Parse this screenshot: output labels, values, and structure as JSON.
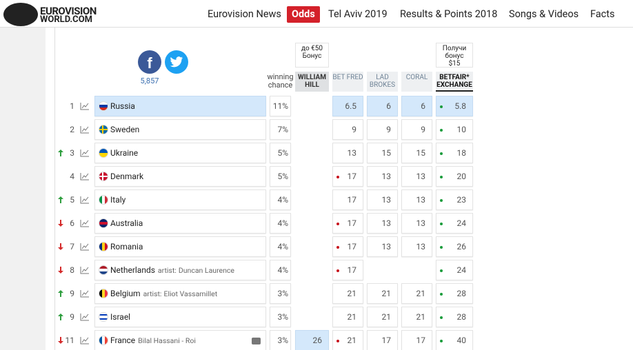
{
  "header": {
    "logo": {
      "line1": "EUROVISION",
      "line2": "WORLD.COM"
    },
    "nav": [
      {
        "label": "Eurovision News"
      },
      {
        "label": "Odds",
        "active": true
      },
      {
        "label": "Tel Aviv 2019"
      },
      {
        "label": "Results & Points 2018"
      },
      {
        "label": "Songs & Videos"
      },
      {
        "label": "Facts"
      }
    ]
  },
  "share": {
    "count": "5,857"
  },
  "table": {
    "columns": [
      {
        "label": "winning chance"
      },
      {
        "label": "WILLIAM HILL",
        "bonus": "до €50 Бонус"
      },
      {
        "label": "BET FRED"
      },
      {
        "label": "LAD BROKES"
      },
      {
        "label": "CORAL"
      },
      {
        "label": "BETFAIR* EXCHANGE",
        "bonus": "Получи бонус $15"
      }
    ],
    "rows": [
      {
        "rank": "1",
        "country": "Russia",
        "flag": {
          "type": "h",
          "colors": [
            "#ffffff",
            "#0039a6",
            "#d52b1e"
          ]
        },
        "chance": "11%",
        "odds": [
          null,
          6.5,
          6,
          6,
          5.8
        ],
        "dots": [
          null,
          null,
          null,
          null,
          "green"
        ],
        "highlight": true,
        "best": [
          1,
          2,
          3,
          4
        ]
      },
      {
        "rank": "2",
        "country": "Sweden",
        "flag": {
          "type": "cross",
          "colors": [
            "#006aa7",
            "#fecc00"
          ]
        },
        "chance": "7%",
        "odds": [
          null,
          9,
          9,
          9,
          10
        ],
        "dots": [
          null,
          null,
          null,
          null,
          "green"
        ]
      },
      {
        "rank": "3",
        "trend": "up",
        "country": "Ukraine",
        "flag": {
          "type": "h",
          "colors": [
            "#0057b7",
            "#ffd700"
          ]
        },
        "chance": "5%",
        "odds": [
          null,
          13,
          15,
          15,
          18
        ],
        "dots": [
          null,
          null,
          null,
          null,
          "green"
        ]
      },
      {
        "rank": "4",
        "country": "Denmark",
        "flag": {
          "type": "cross",
          "colors": [
            "#c8102e",
            "#ffffff"
          ]
        },
        "chance": "5%",
        "odds": [
          null,
          17,
          13,
          13,
          20
        ],
        "dots": [
          null,
          "red",
          null,
          null,
          "green"
        ]
      },
      {
        "rank": "5",
        "trend": "up",
        "country": "Italy",
        "flag": {
          "type": "v",
          "colors": [
            "#009246",
            "#ffffff",
            "#ce2b37"
          ]
        },
        "chance": "4%",
        "odds": [
          null,
          17,
          13,
          13,
          23
        ],
        "dots": [
          null,
          null,
          null,
          null,
          "green"
        ]
      },
      {
        "rank": "6",
        "trend": "down",
        "country": "Australia",
        "flag": {
          "type": "h",
          "colors": [
            "#012169",
            "#c8102e",
            "#012169"
          ]
        },
        "chance": "4%",
        "odds": [
          null,
          17,
          13,
          13,
          24
        ],
        "dots": [
          null,
          "red",
          null,
          null,
          "green"
        ]
      },
      {
        "rank": "7",
        "trend": "down",
        "country": "Romania",
        "flag": {
          "type": "v",
          "colors": [
            "#002b7f",
            "#fcd116",
            "#ce1126"
          ]
        },
        "chance": "4%",
        "odds": [
          null,
          17,
          13,
          13,
          26
        ],
        "dots": [
          null,
          "red",
          null,
          null,
          "green"
        ]
      },
      {
        "rank": "8",
        "trend": "down",
        "country": "Netherlands",
        "artist_prefix": "artist:",
        "artist": "Duncan Laurence",
        "flag": {
          "type": "h",
          "colors": [
            "#ae1c28",
            "#ffffff",
            "#21468b"
          ]
        },
        "chance": "4%",
        "odds": [
          null,
          17,
          null,
          null,
          24
        ],
        "dots": [
          null,
          "red",
          null,
          null,
          "green"
        ]
      },
      {
        "rank": "9",
        "trend": "up",
        "country": "Belgium",
        "artist_prefix": "artist:",
        "artist": "Eliot Vassamillet",
        "flag": {
          "type": "v",
          "colors": [
            "#000000",
            "#fdda24",
            "#ef3340"
          ]
        },
        "chance": "3%",
        "odds": [
          null,
          21,
          21,
          21,
          28
        ],
        "dots": [
          null,
          null,
          null,
          null,
          "green"
        ]
      },
      {
        "rank": "9",
        "trend": "up",
        "country": "Israel",
        "flag": {
          "type": "h",
          "colors": [
            "#ffffff",
            "#0038b8",
            "#ffffff",
            "#ffffff",
            "#0038b8",
            "#ffffff"
          ]
        },
        "chance": "3%",
        "odds": [
          null,
          21,
          21,
          21,
          28
        ],
        "dots": [
          null,
          null,
          null,
          null,
          "green"
        ]
      },
      {
        "rank": "11",
        "trend": "down",
        "country": "France",
        "artist": "Bilal Hassani - Roi",
        "video": true,
        "flag": {
          "type": "v",
          "colors": [
            "#0055a4",
            "#ffffff",
            "#ef4135"
          ]
        },
        "chance": "3%",
        "odds": [
          26,
          21,
          17,
          17,
          40
        ],
        "dots": [
          null,
          "red",
          null,
          null,
          "green"
        ],
        "best": [
          0
        ]
      }
    ]
  }
}
